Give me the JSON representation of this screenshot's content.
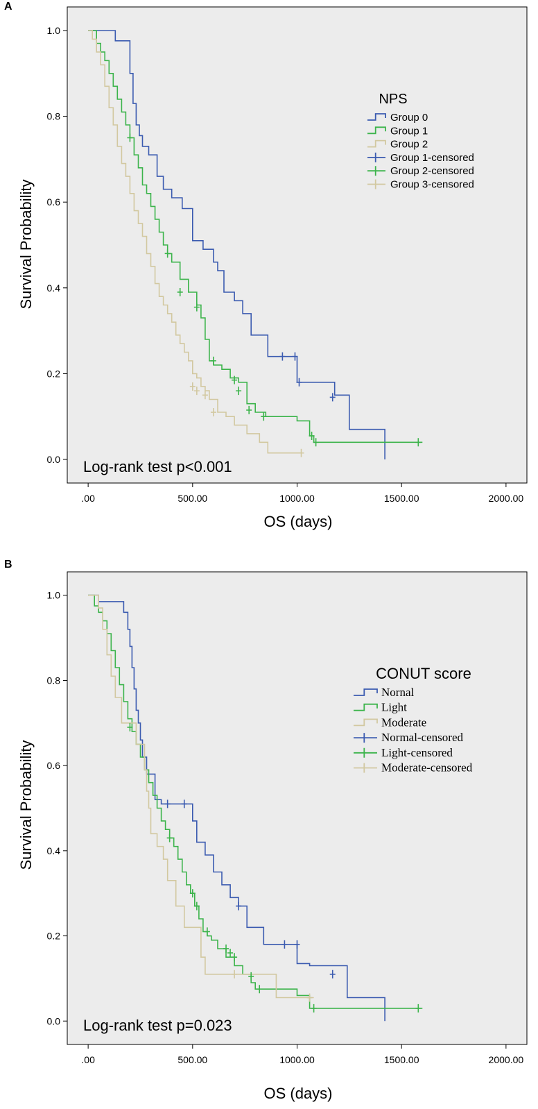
{
  "chart_data": [
    {
      "panel": "A",
      "type": "line",
      "subtype": "kaplan-meier step",
      "xlabel": "OS (days)",
      "ylabel": "Survival Probability",
      "xlim": [
        -100,
        2100
      ],
      "ylim": [
        -0.055,
        1.055
      ],
      "x_ticks": [
        0,
        500,
        1000,
        1500,
        2000
      ],
      "x_tick_labels": [
        ".00",
        "500.00",
        "1000.00",
        "1500.00",
        "2000.00"
      ],
      "y_ticks": [
        0,
        0.2,
        0.4,
        0.6,
        0.8,
        1.0
      ],
      "y_tick_labels": [
        "0.0",
        "0.2",
        "0.4",
        "0.6",
        "0.8",
        "1.0"
      ],
      "annotation": "Log-rank test p<0.001",
      "legend": {
        "title": "NPS",
        "entries": [
          "Group 0",
          "Group 1",
          "Group 2",
          "Group 1-censored",
          "Group 2-censored",
          "Group 3-censored"
        ],
        "colors": [
          "#3b5bb0",
          "#3cb44b",
          "#d2c8a0",
          "#3b5bb0",
          "#3cb44b",
          "#d2c8a0"
        ]
      },
      "series": [
        {
          "name": "Group 0",
          "color": "#3b5bb0",
          "x": [
            0,
            40,
            130,
            200,
            215,
            230,
            245,
            260,
            290,
            330,
            360,
            400,
            450,
            500,
            550,
            600,
            620,
            650,
            700,
            740,
            780,
            860,
            1000,
            1180,
            1250,
            1420
          ],
          "y": [
            1.0,
            1.0,
            0.976,
            0.9,
            0.83,
            0.78,
            0.755,
            0.73,
            0.71,
            0.66,
            0.63,
            0.61,
            0.585,
            0.51,
            0.49,
            0.46,
            0.44,
            0.39,
            0.37,
            0.34,
            0.29,
            0.24,
            0.18,
            0.15,
            0.07,
            0.0
          ],
          "censored_x": [
            930,
            990,
            1010,
            1170
          ],
          "censored_y": [
            0.24,
            0.24,
            0.18,
            0.145
          ]
        },
        {
          "name": "Group 1",
          "color": "#3cb44b",
          "x": [
            0,
            40,
            60,
            80,
            100,
            120,
            140,
            160,
            180,
            200,
            220,
            240,
            260,
            280,
            300,
            320,
            340,
            360,
            380,
            400,
            440,
            480,
            520,
            540,
            560,
            580,
            600,
            640,
            680,
            720,
            760,
            800,
            850,
            1000,
            1060,
            1080,
            1600
          ],
          "y": [
            1.0,
            0.97,
            0.95,
            0.93,
            0.9,
            0.87,
            0.84,
            0.81,
            0.78,
            0.75,
            0.71,
            0.68,
            0.64,
            0.62,
            0.59,
            0.56,
            0.53,
            0.5,
            0.48,
            0.46,
            0.42,
            0.39,
            0.36,
            0.33,
            0.28,
            0.23,
            0.22,
            0.21,
            0.19,
            0.18,
            0.13,
            0.11,
            0.1,
            0.09,
            0.055,
            0.04,
            0.04
          ],
          "censored_x": [
            200,
            380,
            440,
            520,
            600,
            700,
            720,
            770,
            840,
            1070,
            1090,
            1580
          ],
          "censored_y": [
            0.75,
            0.48,
            0.39,
            0.355,
            0.23,
            0.185,
            0.16,
            0.115,
            0.1,
            0.055,
            0.04,
            0.04
          ],
          "censored_color": "#3cb44b"
        },
        {
          "name": "Group 2",
          "color": "#d2c8a0",
          "x": [
            0,
            20,
            40,
            60,
            80,
            100,
            120,
            140,
            160,
            180,
            200,
            220,
            240,
            260,
            280,
            300,
            320,
            340,
            360,
            380,
            400,
            420,
            440,
            460,
            480,
            500,
            520,
            540,
            560,
            580,
            620,
            660,
            700,
            760,
            820,
            860,
            1020
          ],
          "y": [
            1.0,
            0.98,
            0.95,
            0.92,
            0.87,
            0.82,
            0.78,
            0.73,
            0.69,
            0.66,
            0.62,
            0.58,
            0.55,
            0.52,
            0.48,
            0.45,
            0.41,
            0.38,
            0.36,
            0.34,
            0.32,
            0.29,
            0.27,
            0.25,
            0.23,
            0.2,
            0.19,
            0.17,
            0.16,
            0.14,
            0.11,
            0.1,
            0.08,
            0.06,
            0.04,
            0.015,
            0.015
          ],
          "censored_x": [
            500,
            520,
            560,
            600,
            1020
          ],
          "censored_y": [
            0.17,
            0.16,
            0.15,
            0.11,
            0.015
          ],
          "censored_color": "#d2c8a0"
        }
      ]
    },
    {
      "panel": "B",
      "type": "line",
      "subtype": "kaplan-meier step",
      "xlabel": "OS (days)",
      "ylabel": "Survival Probability",
      "xlim": [
        -100,
        2100
      ],
      "ylim": [
        -0.055,
        1.055
      ],
      "x_ticks": [
        0,
        500,
        1000,
        1500,
        2000
      ],
      "x_tick_labels": [
        ".00",
        "500.00",
        "1000.00",
        "1500.00",
        "2000.00"
      ],
      "y_ticks": [
        0,
        0.2,
        0.4,
        0.6,
        0.8,
        1.0
      ],
      "y_tick_labels": [
        "0.0",
        "0.2",
        "0.4",
        "0.6",
        "0.8",
        "1.0"
      ],
      "annotation": "Log-rank test p=0.023",
      "legend": {
        "title": "CONUT score",
        "entries": [
          "Nornal",
          "Light",
          "Moderate",
          "Normal-censored",
          "Light-censored",
          "Moderate-censored"
        ],
        "colors": [
          "#3b5bb0",
          "#3cb44b",
          "#d2c8a0",
          "#3b5bb0",
          "#3cb44b",
          "#d2c8a0"
        ]
      },
      "series": [
        {
          "name": "Nornal",
          "color": "#3b5bb0",
          "x": [
            0,
            50,
            150,
            170,
            190,
            200,
            210,
            220,
            230,
            240,
            250,
            260,
            280,
            320,
            350,
            380,
            460,
            500,
            520,
            560,
            600,
            640,
            680,
            720,
            760,
            840,
            1000,
            1060,
            1240,
            1420
          ],
          "y": [
            1.0,
            0.985,
            0.985,
            0.96,
            0.92,
            0.88,
            0.83,
            0.78,
            0.73,
            0.7,
            0.66,
            0.62,
            0.58,
            0.52,
            0.51,
            0.51,
            0.51,
            0.47,
            0.42,
            0.39,
            0.35,
            0.32,
            0.29,
            0.27,
            0.22,
            0.18,
            0.135,
            0.13,
            0.055,
            0.0
          ],
          "censored_x": [
            380,
            460,
            720,
            940,
            1000,
            1170
          ],
          "censored_y": [
            0.51,
            0.51,
            0.27,
            0.18,
            0.18,
            0.11
          ]
        },
        {
          "name": "Light",
          "color": "#3cb44b",
          "x": [
            0,
            30,
            50,
            70,
            90,
            110,
            130,
            150,
            170,
            190,
            210,
            230,
            250,
            270,
            290,
            310,
            330,
            350,
            370,
            390,
            410,
            430,
            450,
            470,
            490,
            510,
            530,
            550,
            570,
            590,
            620,
            660,
            700,
            740,
            780,
            800,
            1000,
            1060,
            1080,
            1600
          ],
          "y": [
            1.0,
            0.975,
            0.96,
            0.94,
            0.91,
            0.87,
            0.83,
            0.79,
            0.75,
            0.71,
            0.68,
            0.65,
            0.62,
            0.59,
            0.56,
            0.53,
            0.5,
            0.47,
            0.45,
            0.43,
            0.41,
            0.38,
            0.35,
            0.32,
            0.3,
            0.27,
            0.24,
            0.21,
            0.2,
            0.19,
            0.17,
            0.15,
            0.13,
            0.11,
            0.09,
            0.075,
            0.06,
            0.03,
            0.03,
            0.03
          ],
          "censored_x": [
            200,
            390,
            500,
            520,
            570,
            660,
            680,
            700,
            780,
            820,
            1080,
            1580
          ],
          "censored_y": [
            0.69,
            0.43,
            0.3,
            0.27,
            0.21,
            0.17,
            0.16,
            0.15,
            0.105,
            0.075,
            0.03,
            0.03
          ],
          "censored_color": "#3cb44b"
        },
        {
          "name": "Moderate",
          "color": "#d2c8a0",
          "x": [
            0,
            50,
            70,
            90,
            110,
            130,
            160,
            230,
            270,
            280,
            290,
            300,
            330,
            360,
            380,
            420,
            460,
            540,
            560,
            900,
            1080
          ],
          "y": [
            1.0,
            0.97,
            0.92,
            0.86,
            0.81,
            0.76,
            0.7,
            0.65,
            0.59,
            0.54,
            0.5,
            0.44,
            0.41,
            0.38,
            0.33,
            0.27,
            0.22,
            0.15,
            0.11,
            0.055,
            0.055
          ],
          "censored_x": [
            700,
            1060
          ],
          "censored_y": [
            0.11,
            0.055
          ],
          "censored_color": "#d2c8a0"
        }
      ]
    }
  ]
}
